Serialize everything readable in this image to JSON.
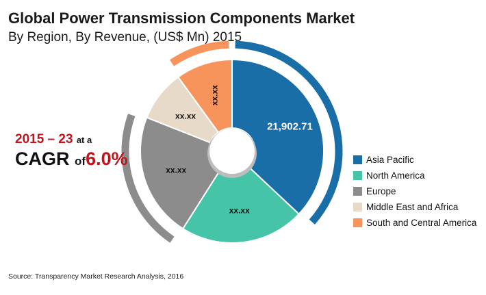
{
  "title": "Global Power Transmission Components Market",
  "subtitle": "By Region, By Revenue, (US$ Mn) 2015",
  "cagr": {
    "years": "2015 – 23",
    "at_a": "at a",
    "cagr_word": "CAGR",
    "of_word": "of",
    "rate": "6.0%"
  },
  "source": "Source: Transparency Market Research Analysis, 2016",
  "chart_data": {
    "type": "pie",
    "donut": true,
    "categories": [
      "Asia Pacific",
      "North America",
      "Europe",
      "Middle East and Africa",
      "South and Central America"
    ],
    "labels": [
      "21,902.71",
      "xx.xx",
      "xx.xx",
      "xx.xx",
      "xx.xx"
    ],
    "values": [
      37,
      22,
      22,
      9,
      10
    ],
    "colors": [
      "#1a6ea8",
      "#46c4a8",
      "#8c8c8c",
      "#e8dac8",
      "#f7945c"
    ],
    "legend_position": "right"
  }
}
